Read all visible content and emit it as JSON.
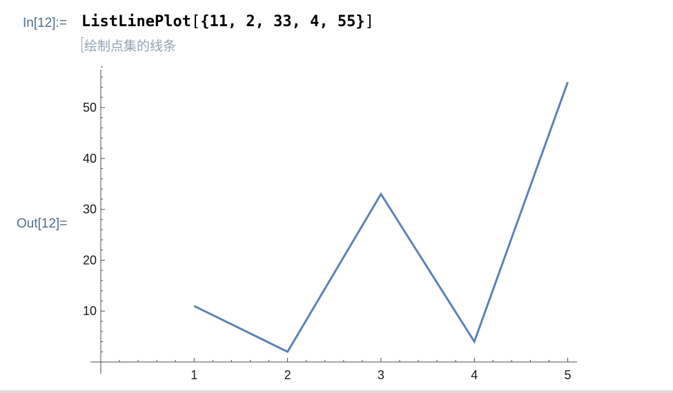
{
  "cells": {
    "in_label": "In[12]:=",
    "out_label": "Out[12]=",
    "input": {
      "function": "ListLinePlot",
      "open_bracket": "[",
      "arguments": "{11, 2, 33, 4, 55}",
      "close_bracket": "]"
    },
    "hint": "绘制点集的线条"
  },
  "chart_data": {
    "type": "line",
    "x": [
      1,
      2,
      3,
      4,
      5
    ],
    "series": [
      {
        "values": [
          11,
          2,
          33,
          4,
          55
        ],
        "color": "#5e81b5"
      }
    ],
    "x_ticks": [
      1,
      2,
      3,
      4,
      5
    ],
    "y_ticks": [
      10,
      20,
      30,
      40,
      50
    ],
    "x_minor_step": 0.2,
    "y_minor_step": 2,
    "xlim": [
      0,
      5.1
    ],
    "ylim": [
      -1,
      58
    ],
    "grid": false,
    "axis_color": "#4d4d4d"
  }
}
